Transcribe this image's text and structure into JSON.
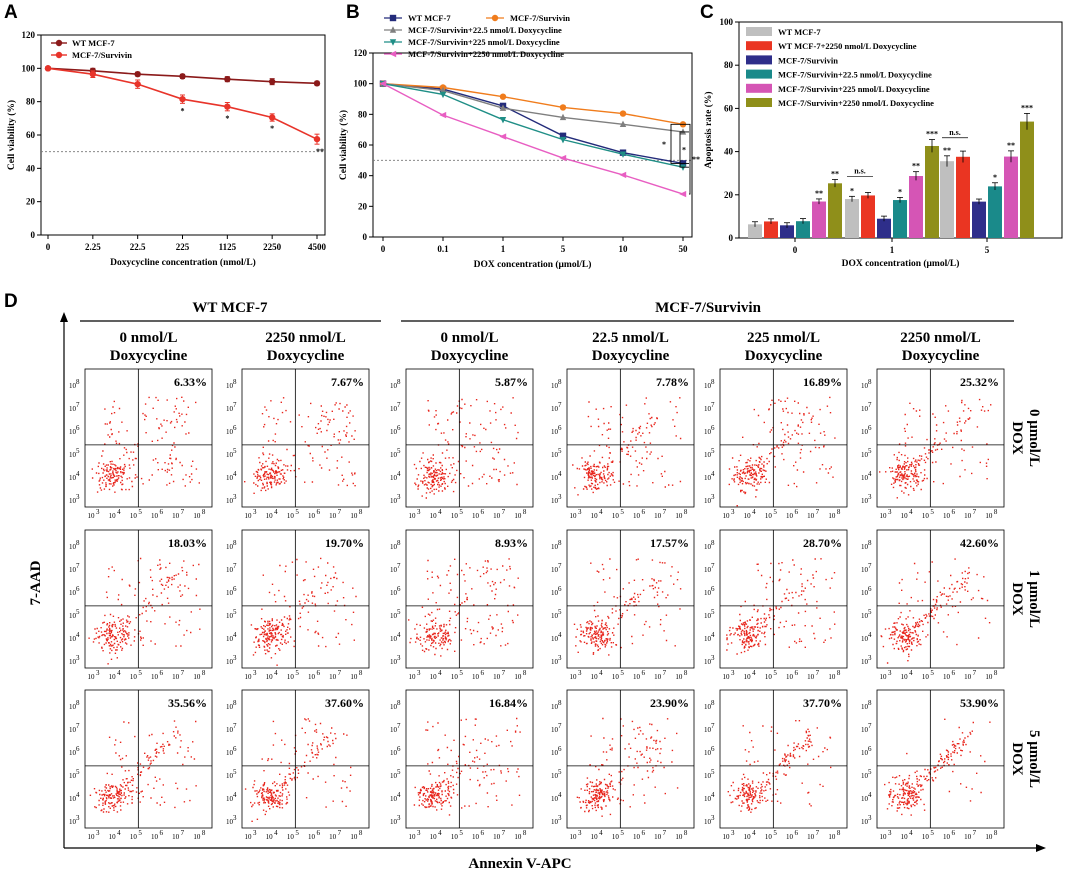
{
  "panels": {
    "A": "A",
    "B": "B",
    "C": "C",
    "D": "D"
  },
  "chart_data": [
    {
      "id": "A",
      "type": "line",
      "xlabel": "Doxycycline concentration (nmol/L)",
      "ylabel": "Cell viability (%)",
      "categories": [
        "0",
        "2.25",
        "22.5",
        "225",
        "1125",
        "2250",
        "4500"
      ],
      "ylim": [
        0,
        120
      ],
      "yticks": [
        0,
        20,
        40,
        60,
        80,
        100,
        120
      ],
      "reference_line": 50,
      "series": [
        {
          "name": "WT MCF-7",
          "color": "#8b1a1a",
          "values": [
            100,
            98.5,
            96.5,
            95.2,
            93.5,
            92.0,
            91.0
          ],
          "errors": [
            1,
            1.5,
            1.2,
            1.2,
            1.5,
            1.8,
            1.2
          ],
          "marker": "circle"
        },
        {
          "name": "MCF-7/Survivin",
          "color": "#e8342a",
          "values": [
            100,
            96.5,
            90.5,
            81.5,
            77.0,
            70.5,
            57.5
          ],
          "errors": [
            1,
            2,
            2.5,
            2.5,
            2.5,
            2.2,
            3
          ],
          "marker": "circle",
          "sig": [
            "",
            "",
            "",
            "*",
            "*",
            "*",
            "**"
          ]
        }
      ]
    },
    {
      "id": "B",
      "type": "line",
      "xlabel": "DOX concentration (μmol/L)",
      "ylabel": "Cell viability (%)",
      "categories": [
        "0",
        "0.1",
        "1",
        "5",
        "10",
        "50"
      ],
      "ylim": [
        0,
        120
      ],
      "yticks": [
        0,
        20,
        40,
        60,
        80,
        100,
        120
      ],
      "reference_line": 50,
      "series": [
        {
          "name": "WT MCF-7",
          "color": "#232b7a",
          "values": [
            100,
            96.5,
            85.5,
            66.0,
            55.0,
            48.0
          ],
          "marker": "square"
        },
        {
          "name": "MCF-7/Survivin",
          "color": "#f07c1c",
          "values": [
            100,
            97.5,
            91.5,
            84.5,
            80.5,
            73.5
          ],
          "marker": "circle"
        },
        {
          "name": "MCF-7/Survivin+22.5 nmol/L Doxycycline",
          "color": "#7f7f7f",
          "values": [
            100,
            95.5,
            84.0,
            78.0,
            73.5,
            68.5
          ],
          "marker": "triangle"
        },
        {
          "name": "MCF-7/Survivin+225 nmol/L Doxycycline",
          "color": "#1f8e86",
          "values": [
            100,
            93.0,
            76.5,
            63.5,
            54.0,
            45.5
          ],
          "marker": "triangle-down"
        },
        {
          "name": "MCF-7/Survivin+2250 nmol/L Doxycycline",
          "color": "#e85ec2",
          "values": [
            100,
            79.5,
            65.5,
            51.5,
            40.5,
            28.0
          ],
          "marker": "left"
        }
      ],
      "brackets": [
        "*",
        "*",
        "**"
      ]
    },
    {
      "id": "C",
      "type": "bar",
      "xlabel": "DOX concentration (μmol/L)",
      "ylabel": "Apoptosis rate (%)",
      "categories": [
        "0",
        "1",
        "5"
      ],
      "ylim": [
        0,
        100
      ],
      "yticks": [
        0,
        20,
        40,
        60,
        80,
        100
      ],
      "series": [
        {
          "name": "WT MCF-7",
          "color": "#bfbfbf",
          "values": [
            6.33,
            18.03,
            35.56
          ],
          "sig": [
            "",
            "*",
            "**"
          ]
        },
        {
          "name": "WT MCF-7+2250 nmol/L Doxycycline",
          "color": "#ea3522",
          "values": [
            7.67,
            19.7,
            37.6
          ],
          "sig": [
            "",
            "",
            ""
          ]
        },
        {
          "name": "MCF-7/Survivin",
          "color": "#2e2e8a",
          "values": [
            5.87,
            8.93,
            16.84
          ],
          "sig": [
            "",
            "",
            ""
          ]
        },
        {
          "name": "MCF-7/Survivin+22.5 nmol/L Doxycycline",
          "color": "#1a8a8a",
          "values": [
            7.78,
            17.57,
            23.9
          ],
          "sig": [
            "",
            "*",
            "*"
          ]
        },
        {
          "name": "MCF-7/Survivin+225 nmol/L Doxycycline",
          "color": "#d555b5",
          "values": [
            16.89,
            28.7,
            37.7
          ],
          "sig": [
            "**",
            "**",
            "**"
          ]
        },
        {
          "name": "MCF-7/Survivin+2250 nmol/L Doxycycline",
          "color": "#8f8f1a",
          "values": [
            25.32,
            42.6,
            53.9
          ],
          "sig": [
            "**",
            "***",
            "***"
          ]
        }
      ],
      "ns_labels": [
        "n.s.",
        "n.s."
      ]
    },
    {
      "id": "D",
      "type": "scatter",
      "xlabel": "Annexin V-APC",
      "ylabel": "7-AAD",
      "group_headers": [
        "WT MCF-7",
        "MCF-7/Survivin"
      ],
      "columns": [
        [
          "0 nmol/L",
          "Doxycycline"
        ],
        [
          "2250 nmol/L",
          "Doxycycline"
        ],
        [
          "0 nmol/L",
          "Doxycycline"
        ],
        [
          "22.5 nmol/L",
          "Doxycycline"
        ],
        [
          "225 nmol/L",
          "Doxycycline"
        ],
        [
          "2250 nmol/L",
          "Doxycycline"
        ]
      ],
      "rows": [
        [
          "0 μmol/L",
          "DOX"
        ],
        [
          "1 μmol/L",
          "DOX"
        ],
        [
          "5 μmol/L",
          "DOX"
        ]
      ],
      "percentages": [
        [
          "6.33%",
          "7.67%",
          "5.87%",
          "7.78%",
          "16.89%",
          "25.32%"
        ],
        [
          "18.03%",
          "19.70%",
          "8.93%",
          "17.57%",
          "28.70%",
          "42.60%"
        ],
        [
          "35.56%",
          "37.60%",
          "16.84%",
          "23.90%",
          "37.70%",
          "53.90%"
        ]
      ],
      "axis_ticks": [
        "10",
        "3",
        "4",
        "5",
        "6",
        "7",
        "8"
      ]
    }
  ]
}
